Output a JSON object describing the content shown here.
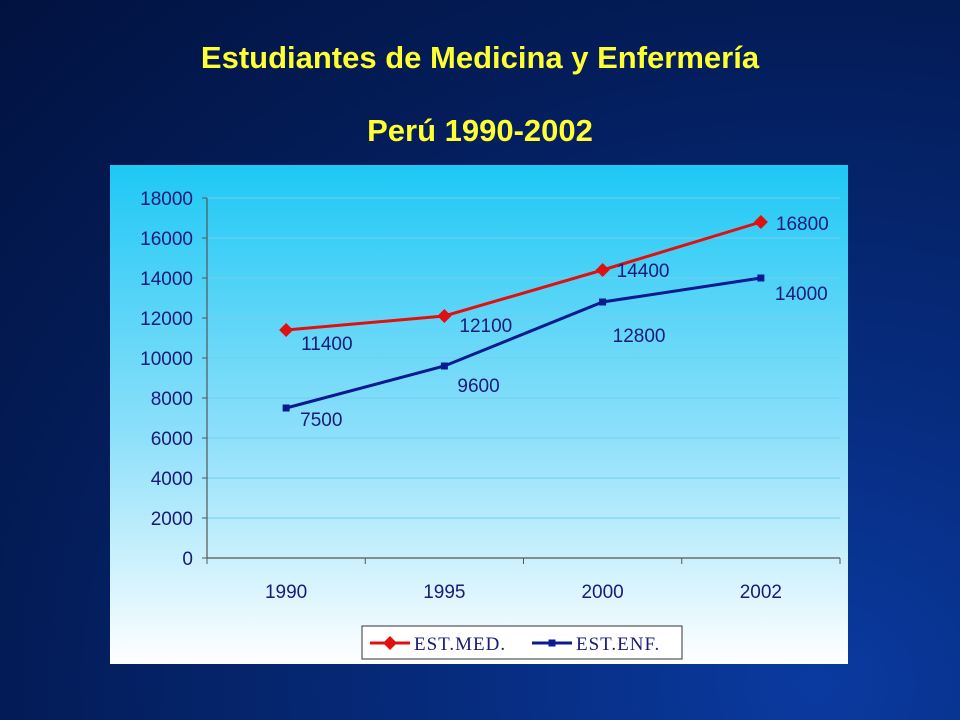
{
  "slide": {
    "title_line1": "Estudiantes de Medicina y Enfermería",
    "title_line2": "Perú 1990-2002"
  },
  "chart_data": {
    "type": "line",
    "categories": [
      "1990",
      "1995",
      "2000",
      "2002"
    ],
    "series": [
      {
        "name": "EST.MED.",
        "values": [
          11400,
          12100,
          14400,
          16800
        ],
        "color": "#e01010",
        "marker": "diamond"
      },
      {
        "name": "EST.ENF.",
        "values": [
          7500,
          9600,
          12800,
          14000
        ],
        "color": "#0a1a90",
        "marker": "square"
      }
    ],
    "data_labels": {
      "EST.MED.": [
        "11400",
        "12100",
        "14400",
        "16800"
      ],
      "EST.ENF.": [
        "7500",
        "9600",
        "12800",
        "14000"
      ]
    },
    "ylim": [
      0,
      18000
    ],
    "yticks": [
      0,
      2000,
      4000,
      6000,
      8000,
      10000,
      12000,
      14000,
      16000,
      18000
    ],
    "grid": true,
    "legend": "bottom",
    "title": "",
    "xlabel": "",
    "ylabel": ""
  }
}
